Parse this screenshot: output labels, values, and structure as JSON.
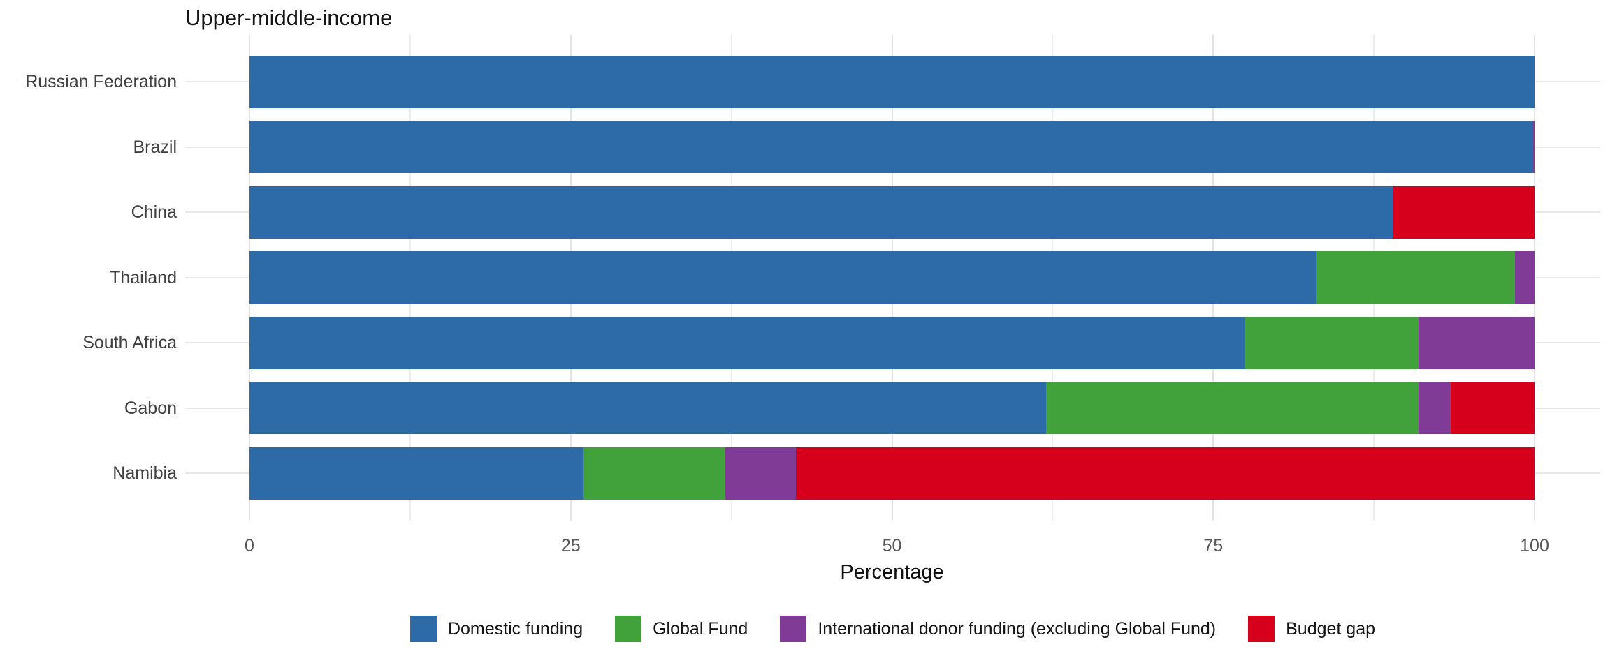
{
  "chart_data": {
    "type": "bar",
    "orientation": "horizontal",
    "stacked": true,
    "title": "Upper-middle-income",
    "xlabel": "Percentage",
    "xlim": [
      0,
      100
    ],
    "xticks": [
      0,
      25,
      50,
      75,
      100
    ],
    "grid": true,
    "legend_position": "bottom",
    "categories": [
      "Russian Federation",
      "Brazil",
      "China",
      "Thailand",
      "South Africa",
      "Gabon",
      "Namibia"
    ],
    "series": [
      {
        "name": "Domestic funding",
        "color": "#2D6AA8",
        "values": [
          100,
          99.9,
          89,
          83,
          77.5,
          62,
          26
        ]
      },
      {
        "name": "Global Fund",
        "color": "#41A23C",
        "values": [
          0,
          0,
          0,
          15.5,
          13.5,
          29,
          11
        ]
      },
      {
        "name": "International donor funding (excluding Global Fund)",
        "color": "#7F3B96",
        "values": [
          0,
          0.1,
          0,
          1.5,
          9,
          2.5,
          5.5
        ]
      },
      {
        "name": "Budget gap",
        "color": "#D6001C",
        "values": [
          0,
          0,
          11,
          0,
          0,
          6.5,
          57.5
        ]
      }
    ]
  }
}
